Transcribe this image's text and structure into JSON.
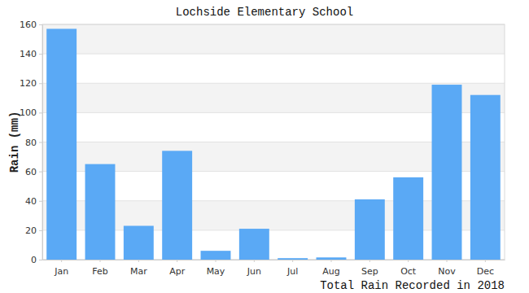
{
  "chart_data": {
    "type": "bar",
    "title": "Lochside Elementary School",
    "x_label": "Total Rain Recorded in 2018",
    "y_label": "Rain (mm)",
    "categories": [
      "Jan",
      "Feb",
      "Mar",
      "Apr",
      "May",
      "Jun",
      "Jul",
      "Aug",
      "Sep",
      "Oct",
      "Nov",
      "Dec"
    ],
    "values": [
      157,
      65,
      23,
      74,
      6,
      21,
      1,
      1.5,
      41,
      56,
      119,
      112
    ],
    "color": "#5aa9f5",
    "ylim": [
      0,
      160
    ],
    "yticks": [
      0,
      20,
      40,
      60,
      80,
      100,
      120,
      140,
      160
    ],
    "grid": true
  }
}
